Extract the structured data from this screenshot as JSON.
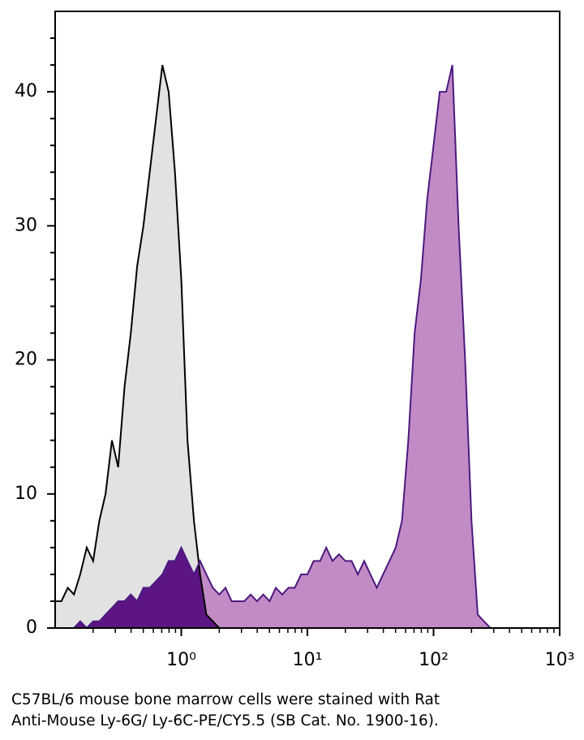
{
  "chart_data": {
    "type": "histogram-line",
    "x": [
      0.1,
      0.112,
      0.126,
      0.141,
      0.158,
      0.178,
      0.2,
      0.224,
      0.251,
      0.282,
      0.316,
      0.355,
      0.398,
      0.447,
      0.501,
      0.562,
      0.631,
      0.708,
      0.794,
      0.891,
      1,
      1.12,
      1.26,
      1.41,
      1.58,
      1.78,
      2,
      2.24,
      2.51,
      2.82,
      3.16,
      3.55,
      3.98,
      4.47,
      5.01,
      5.62,
      6.31,
      7.08,
      7.94,
      8.91,
      10,
      11.2,
      12.6,
      14.1,
      15.8,
      17.8,
      20,
      22.4,
      25.1,
      28.2,
      31.6,
      35.5,
      39.8,
      44.7,
      50.1,
      56.2,
      63.1,
      70.8,
      79.4,
      89.1,
      100,
      112,
      126,
      141,
      158,
      178,
      200,
      224,
      251,
      282,
      316,
      355,
      398,
      447,
      501,
      562,
      631,
      708,
      794,
      891,
      1000
    ],
    "series": [
      {
        "color": "#000000",
        "fill": "#e2e2e2",
        "values": [
          2,
          2,
          3,
          2.5,
          4,
          6,
          5,
          8,
          10,
          14,
          12,
          18,
          22,
          27,
          30,
          34,
          38,
          42,
          40,
          34,
          26,
          14,
          8,
          4,
          1,
          0.5,
          0,
          0,
          0,
          0,
          0,
          0,
          0,
          0,
          0,
          0,
          0,
          0,
          0,
          0,
          0,
          0,
          0,
          0,
          0,
          0,
          0,
          0,
          0,
          0,
          0,
          0,
          0,
          0,
          0,
          0,
          0,
          0,
          0,
          0,
          0,
          0,
          0,
          0,
          0,
          0,
          0,
          0,
          0,
          0,
          0,
          0,
          0,
          0,
          0,
          0,
          0,
          0,
          0,
          0,
          0
        ]
      },
      {
        "color": "#4b1a7f",
        "fill": "#c38bc6",
        "overlap_fill": "#5c1582",
        "values": [
          0,
          0,
          0,
          0,
          0.5,
          0,
          0.5,
          0.5,
          1,
          1.5,
          2,
          2,
          2.5,
          2,
          3,
          3,
          3.5,
          4,
          5,
          5,
          6,
          5,
          4,
          5,
          4,
          3,
          2.5,
          3,
          2,
          2,
          2,
          2.5,
          2,
          2.5,
          2,
          3,
          2.5,
          3,
          3,
          4,
          4,
          5,
          5,
          6,
          5,
          5.5,
          5,
          5,
          4,
          5,
          4,
          3,
          4,
          5,
          6,
          8,
          14,
          22,
          26,
          32,
          36,
          40,
          40,
          42,
          30,
          20,
          8,
          1,
          0.5,
          0,
          0,
          0,
          0,
          0,
          0,
          0,
          0,
          0,
          0,
          0,
          0
        ]
      }
    ],
    "xscale": "log",
    "xlim": [
      0.1,
      1000
    ],
    "xticks": [
      {
        "value": 1,
        "label": "10⁰"
      },
      {
        "value": 10,
        "label": "10¹"
      },
      {
        "value": 100,
        "label": "10²"
      },
      {
        "value": 1000,
        "label": "10³"
      }
    ],
    "xminor_ticks": [
      0.2,
      0.3,
      0.4,
      0.5,
      0.6,
      0.7,
      0.8,
      0.9,
      2,
      3,
      4,
      5,
      6,
      7,
      8,
      9,
      20,
      30,
      40,
      50,
      60,
      70,
      80,
      90,
      200,
      300,
      400,
      500,
      600,
      700,
      800,
      900
    ],
    "ylim": [
      0,
      46
    ],
    "yticks": [
      0,
      10,
      20,
      30,
      40
    ],
    "yminor_ticks": [
      2,
      4,
      6,
      8,
      12,
      14,
      16,
      18,
      22,
      24,
      26,
      28,
      32,
      34,
      36,
      38,
      42,
      44
    ]
  },
  "caption": [
    "C57BL/6 mouse bone marrow cells were stained with Rat",
    "Anti-Mouse Ly-6G/ Ly-6C-PE/CY5.5 (SB Cat. No. 1900-16)."
  ]
}
